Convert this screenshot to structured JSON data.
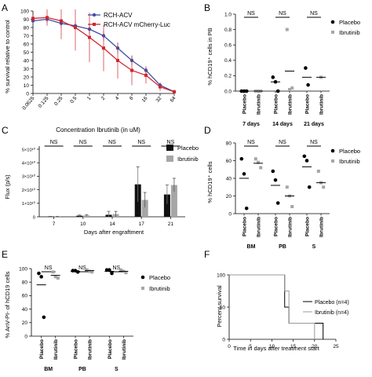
{
  "chart_data": [
    {
      "panel": "A",
      "type": "line",
      "ylabel": "% survival relative to control",
      "xlabel": "Concentration Ibrutinib (in uM)",
      "x_tick_labels": [
        "0.0625",
        "0.125",
        "0.25",
        "0.5",
        "1",
        "2",
        "4",
        "8",
        "16",
        "32",
        "64"
      ],
      "yticks": [
        "0",
        "10",
        "20",
        "30",
        "40",
        "50",
        "60",
        "70",
        "80",
        "90",
        "100"
      ],
      "ylim": [
        0,
        100
      ],
      "legend_position": "top-right",
      "series": [
        {
          "name": "RCH-ACV",
          "color": "#3b4fa5",
          "values": [
            88,
            90,
            85,
            82,
            78,
            70,
            55,
            40,
            28,
            10,
            2
          ],
          "err": [
            4,
            4,
            5,
            5,
            6,
            6,
            6,
            6,
            5,
            3,
            2
          ]
        },
        {
          "name": "RCH-ACV mCherry-Luc",
          "color": "#d0262e",
          "values": [
            91,
            92,
            88,
            80,
            68,
            55,
            40,
            28,
            22,
            8,
            2
          ],
          "err": [
            5,
            10,
            22,
            28,
            30,
            28,
            22,
            18,
            10,
            5,
            2
          ]
        }
      ]
    },
    {
      "panel": "B",
      "type": "scatter",
      "ylabel": "% hCD19⁺ cells in PB",
      "yticks": [
        "0.0",
        "0.2",
        "0.4",
        "0.6",
        "0.8",
        "1.0"
      ],
      "ylim": [
        0,
        1
      ],
      "group_labels": [
        "7 days",
        "14 days",
        "21 days"
      ],
      "sub_labels": [
        "Placebo",
        "Ibrutinib"
      ],
      "sig": [
        "NS",
        "NS",
        "NS"
      ],
      "legend": [
        "Placebo",
        "Ibrutinib"
      ],
      "points": {
        "placebo": [
          [
            0.0,
            0.0,
            0.0
          ],
          [
            0.18,
            0.12,
            0.0
          ],
          [
            0.3,
            0.08
          ]
        ],
        "ibrutinib": [
          [
            0.0,
            0.0,
            0.0
          ],
          [
            0.8,
            0.02,
            0.04
          ],
          [
            0.18
          ]
        ]
      },
      "medians": {
        "placebo": [
          0.0,
          0.12,
          0.18
        ],
        "ibrutinib": [
          0.0,
          0.26,
          0.18
        ]
      }
    },
    {
      "panel": "C",
      "type": "bar",
      "ylabel": "Flux (p/s)",
      "xlabel": "Days after engraftment",
      "categories": [
        "7",
        "10",
        "14",
        "17",
        "21"
      ],
      "yticks": [
        "0",
        "1×10¹⁰",
        "2×10¹⁰",
        "3×10¹⁰",
        "4×10¹⁰",
        "5×10¹⁰"
      ],
      "ylim": [
        0,
        5
      ],
      "sig": [
        "NS",
        "NS",
        "NS",
        "NS",
        "NS"
      ],
      "series": [
        {
          "name": "Placebo",
          "color": "#111111",
          "values": [
            0.02,
            0.08,
            0.15,
            2.4,
            1.65
          ],
          "err": [
            0.01,
            0.05,
            0.25,
            1.3,
            0.7
          ]
        },
        {
          "name": "Ibrutinib",
          "color": "#a6a6a6",
          "values": [
            0.02,
            0.1,
            0.2,
            1.25,
            2.35
          ],
          "err": [
            0.01,
            0.06,
            0.2,
            0.55,
            0.5
          ]
        }
      ]
    },
    {
      "panel": "D",
      "type": "scatter",
      "ylabel": "% hCD19⁺ cells",
      "yticks": [
        "0",
        "20",
        "40",
        "60",
        "80"
      ],
      "ylim": [
        0,
        80
      ],
      "group_labels": [
        "BM",
        "PB",
        "S"
      ],
      "sub_labels": [
        "Placebo",
        "Ibrutinib"
      ],
      "sig": [
        "NS",
        "NS",
        "NS"
      ],
      "legend": [
        "Placebo",
        "Ibrutinib"
      ],
      "points": {
        "placebo": [
          [
            62,
            45,
            6
          ],
          [
            48,
            38,
            12
          ],
          [
            65,
            60,
            30
          ]
        ],
        "ibrutinib": [
          [
            62,
            58,
            52
          ],
          [
            30,
            20,
            8
          ],
          [
            48,
            35,
            30
          ]
        ]
      },
      "medians": {
        "placebo": [
          40,
          32,
          53
        ],
        "ibrutinib": [
          57,
          20,
          35
        ]
      }
    },
    {
      "panel": "E",
      "type": "scatter",
      "ylabel": "% AnV-PI- of hCD19 cells",
      "yticks": [
        "0",
        "20",
        "40",
        "60",
        "80",
        "100"
      ],
      "ylim": [
        0,
        100
      ],
      "group_labels": [
        "BM",
        "PB",
        "S"
      ],
      "sub_labels": [
        "Placebo",
        "Ibrutinib"
      ],
      "sig": [
        "NS",
        "NS",
        "NS"
      ],
      "legend": [
        "Placebo",
        "Ibrutinib"
      ],
      "points": {
        "placebo": [
          [
            93,
            88,
            28
          ],
          [
            97,
            97,
            95
          ],
          [
            98,
            98,
            93
          ]
        ],
        "ibrutinib": [
          [
            95,
            88,
            86
          ],
          [
            98,
            96,
            95
          ],
          [
            98,
            96,
            94
          ]
        ]
      },
      "medians": {
        "placebo": [
          76,
          96,
          96
        ],
        "ibrutinib": [
          90,
          97,
          96
        ]
      }
    },
    {
      "panel": "F",
      "type": "line",
      "ylabel": "Percent survival",
      "xlabel": "Time in days after treatment start",
      "xticks": [
        "0",
        "5",
        "10",
        "15",
        "20",
        "25"
      ],
      "yticks": [
        "0",
        "50",
        "100"
      ],
      "xlim": [
        0,
        25
      ],
      "ylim": [
        0,
        100
      ],
      "legend_position": "right",
      "series": [
        {
          "name": "Placebo (n=4)",
          "steps": [
            [
              0,
              100
            ],
            [
              13,
              100
            ],
            [
              13,
              50
            ],
            [
              14,
              50
            ],
            [
              14,
              25
            ],
            [
              22,
              25
            ],
            [
              22,
              0
            ]
          ]
        },
        {
          "name": "Ibrutinib (n=4)",
          "steps": [
            [
              0,
              100
            ],
            [
              13,
              100
            ],
            [
              13,
              75
            ],
            [
              14,
              75
            ],
            [
              14,
              25
            ],
            [
              20,
              25
            ],
            [
              20,
              0
            ]
          ]
        }
      ]
    }
  ],
  "panel_letters": [
    "A",
    "B",
    "C",
    "D",
    "E",
    "F"
  ]
}
